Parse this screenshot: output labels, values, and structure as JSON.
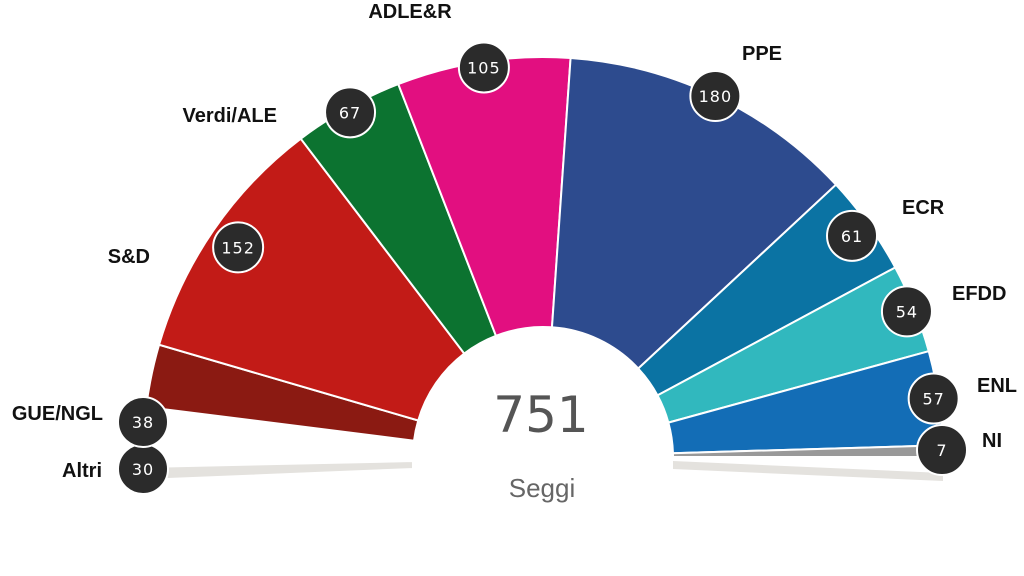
{
  "chart_data": {
    "type": "pie",
    "variant": "parliament-semicircle",
    "total": "751",
    "total_label": "Seggi",
    "series": [
      {
        "name": "Altri",
        "value": 30,
        "color": "#e4e2de"
      },
      {
        "name": "GUE/NGL",
        "value": 38,
        "color": "#8b1a12"
      },
      {
        "name": "S&D",
        "value": 152,
        "color": "#c21b17"
      },
      {
        "name": "Verdi/ALE",
        "value": 67,
        "color": "#0c7330"
      },
      {
        "name": "ADLE&R",
        "value": 105,
        "color": "#e20f80"
      },
      {
        "name": "PPE",
        "value": 180,
        "color": "#2d4b8e"
      },
      {
        "name": "ECR",
        "value": 61,
        "color": "#0b73a3"
      },
      {
        "name": "EFDD",
        "value": 54,
        "color": "#31b8be"
      },
      {
        "name": "ENL",
        "value": 57,
        "color": "#136db6"
      },
      {
        "name": "NI",
        "value": 7,
        "color": "#999999"
      }
    ]
  }
}
